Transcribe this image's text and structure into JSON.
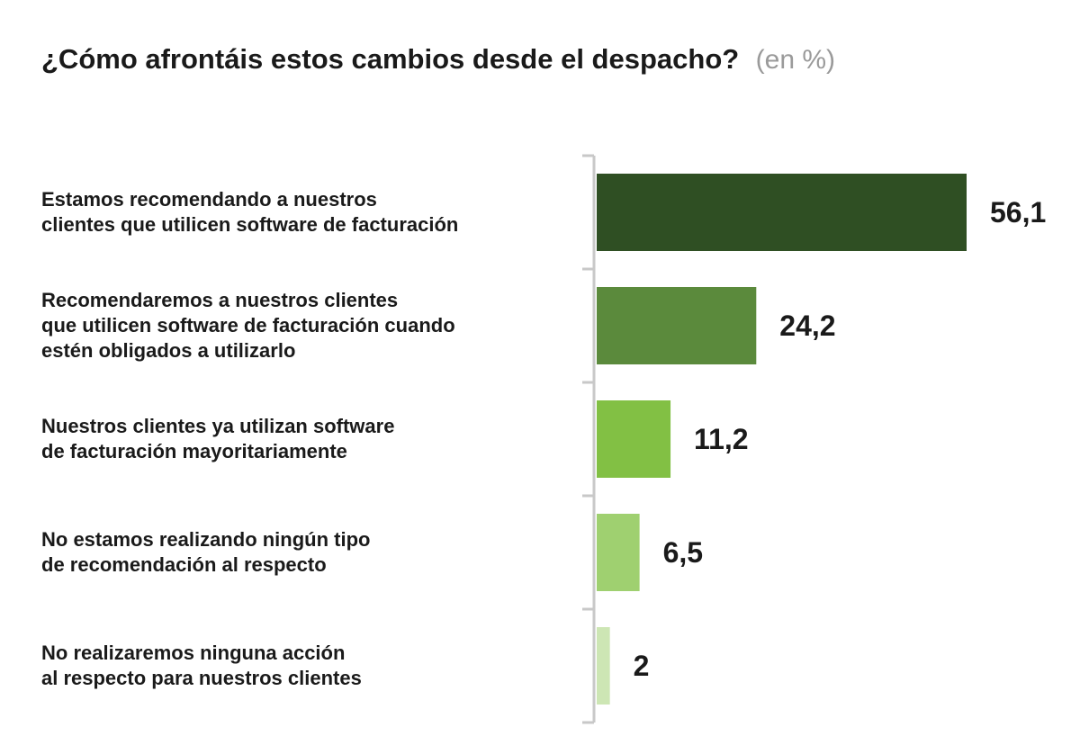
{
  "chart_data": {
    "type": "bar",
    "orientation": "horizontal",
    "title": "¿Cómo afrontáis estos cambios desde el despacho?",
    "subtitle": "(en %)",
    "categories": [
      [
        "Estamos recomendando a nuestros",
        "clientes que utilicen software de facturación"
      ],
      [
        "Recomendaremos a nuestros clientes",
        "que utilicen software de facturación cuando",
        "estén obligados a utilizarlo"
      ],
      [
        "Nuestros clientes ya utilizan software",
        "de facturación mayoritariamente"
      ],
      [
        "No estamos realizando ningún tipo",
        "de recomendación al respecto"
      ],
      [
        "No realizaremos ninguna acción",
        "al respecto para nuestros clientes"
      ]
    ],
    "values": [
      56.1,
      24.2,
      11.2,
      6.5,
      2
    ],
    "value_labels": [
      "56,1",
      "24,2",
      "11,2",
      "6,5",
      "2"
    ],
    "colors": [
      "#2f4f23",
      "#5b8a3c",
      "#82c044",
      "#9fd070",
      "#cde6b4"
    ],
    "xlim": [
      0,
      56.1
    ],
    "grid": false,
    "legend": "none"
  }
}
